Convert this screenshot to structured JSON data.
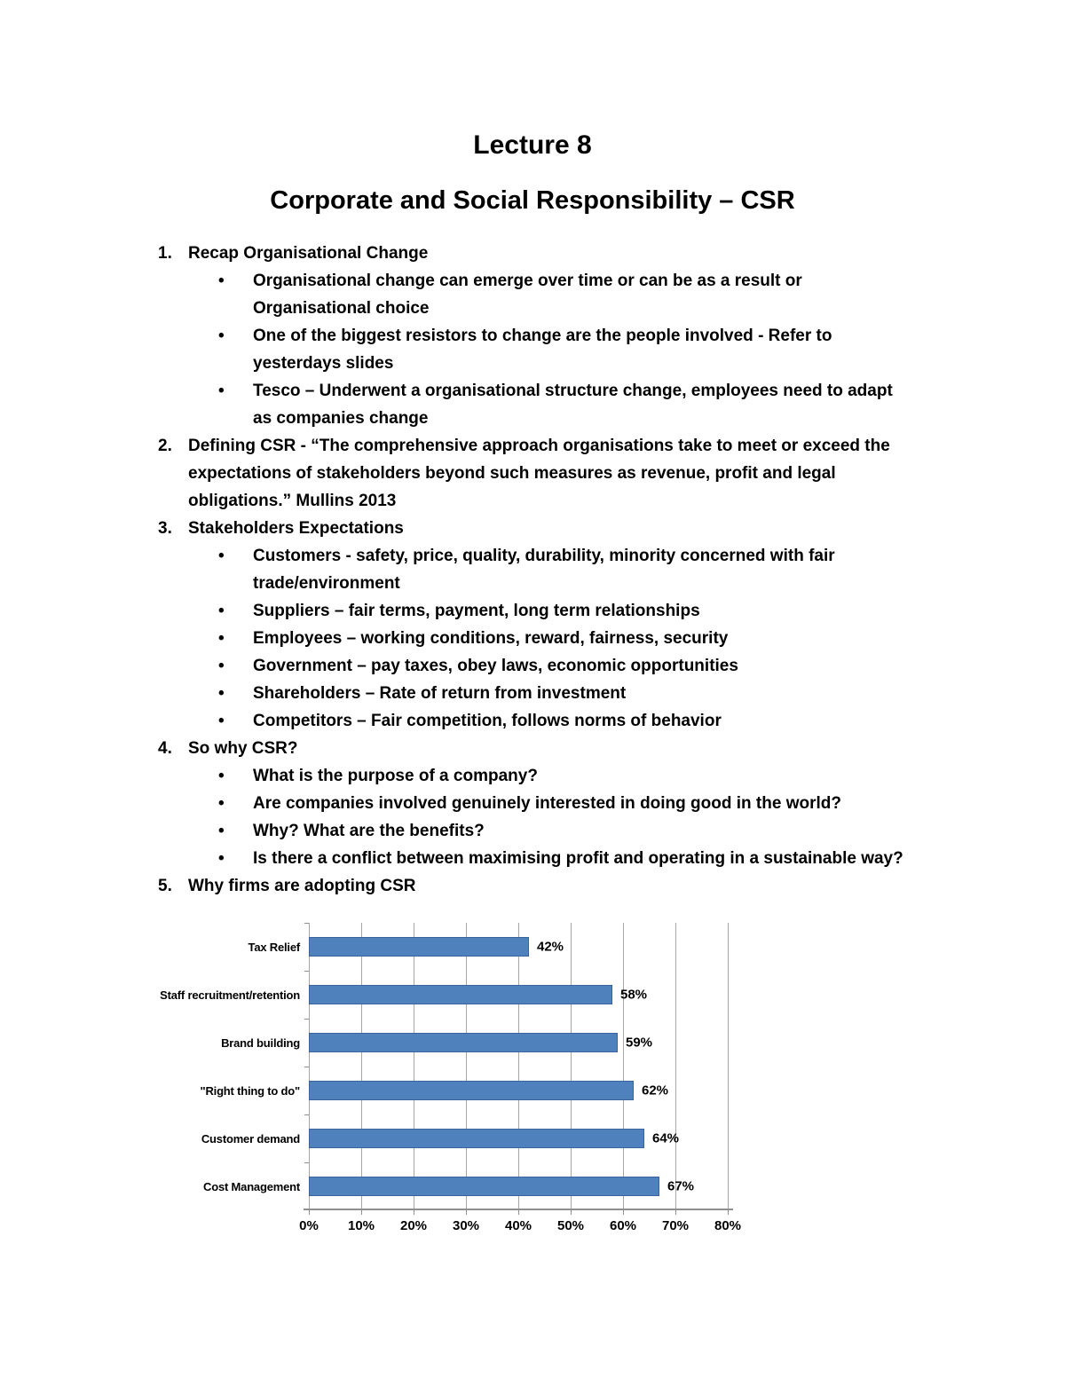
{
  "doc": {
    "title": "Lecture 8",
    "subtitle": "Corporate and Social Responsibility – CSR",
    "bullet_glyph": "•",
    "items": [
      {
        "number": "1.",
        "text_lines": [
          "Recap Organisational Change"
        ],
        "bullets": [
          {
            "lines": [
              "Organisational change can emerge over time or can be as a result or",
              "Organisational choice"
            ]
          },
          {
            "lines": [
              "One of the biggest resistors to change are the people involved - Refer to",
              "yesterdays slides"
            ]
          },
          {
            "lines": [
              "Tesco – Underwent a organisational structure change, employees need to adapt",
              "as companies change"
            ]
          }
        ]
      },
      {
        "number": "2.",
        "text_lines": [
          "Defining CSR - “The comprehensive approach organisations take to meet or exceed the",
          "expectations of stakeholders beyond such measures as revenue, profit and legal",
          "obligations.” Mullins 2013"
        ],
        "bullets": []
      },
      {
        "number": "3.",
        "text_lines": [
          "Stakeholders Expectations"
        ],
        "bullets": [
          {
            "lines": [
              "Customers - safety, price, quality, durability, minority concerned with fair",
              "trade/environment"
            ]
          },
          {
            "lines": [
              "Suppliers – fair terms, payment, long term relationships"
            ]
          },
          {
            "lines": [
              "Employees – working conditions, reward, fairness, security"
            ]
          },
          {
            "lines": [
              "Government – pay taxes, obey laws, economic opportunities"
            ]
          },
          {
            "lines": [
              "Shareholders – Rate of return from investment"
            ]
          },
          {
            "lines": [
              "Competitors – Fair competition, follows norms of behavior"
            ]
          }
        ]
      },
      {
        "number": "4.",
        "text_lines": [
          "So why CSR?"
        ],
        "bullets": [
          {
            "lines": [
              "What is the purpose of a company?"
            ]
          },
          {
            "lines": [
              "Are companies involved genuinely interested in doing good in the world?"
            ]
          },
          {
            "lines": [
              "Why? What are the benefits?"
            ]
          },
          {
            "lines": [
              "Is there a conflict between maximising profit and operating in a sustainable way?"
            ]
          }
        ]
      },
      {
        "number": "5.",
        "text_lines": [
          "Why firms are adopting CSR"
        ],
        "bullets": []
      }
    ]
  },
  "chart_data": {
    "type": "bar",
    "orientation": "horizontal",
    "title": "",
    "xlabel": "",
    "ylabel": "",
    "categories": [
      "Tax Relief",
      "Staff recruitment/retention",
      "Brand building",
      "\"Right thing to do\"",
      "Customer demand",
      "Cost Management"
    ],
    "values": [
      42,
      58,
      59,
      62,
      64,
      67
    ],
    "data_labels": [
      "42%",
      "58%",
      "59%",
      "62%",
      "64%",
      "67%"
    ],
    "xlim": [
      0,
      80
    ],
    "xticks": [
      "0%",
      "10%",
      "20%",
      "30%",
      "40%",
      "50%",
      "60%",
      "70%",
      "80%"
    ],
    "grid": true,
    "legend": false,
    "bar_color": "#4f81bd",
    "bar_border_color": "#3a629b",
    "gridline_color": "#a6a6a6",
    "axis_color": "#8f8f8f"
  }
}
